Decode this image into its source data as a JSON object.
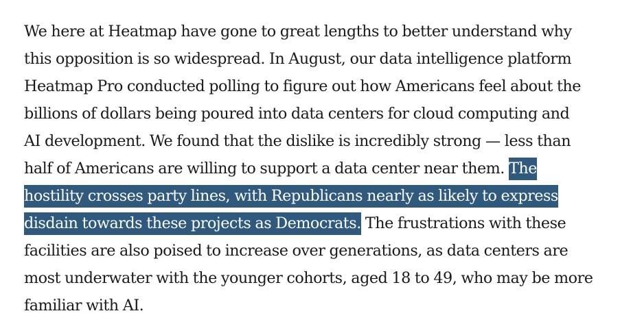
{
  "article": {
    "paragraph": {
      "lines": [
        {
          "text": "We here at Heatmap have gone to great lengths to better understand why"
        },
        {
          "text": "this opposition is so widespread. In August, our data intelligence platform"
        },
        {
          "text": "Heatmap Pro conducted polling to figure out how Americans feel about the"
        },
        {
          "text": "billions of dollars being poured into data centers for cloud computing and"
        },
        {
          "text": "AI development. We found that the dislike is incredibly strong — less than"
        },
        {
          "before": "half of Americans are willing to support a data center near them. ",
          "highlight": "The"
        },
        {
          "highlight": "hostility crosses party lines, with Republicans nearly as likely to express"
        },
        {
          "highlight": "disdain towards these projects as Democrats.",
          "after": " The frustrations with these"
        },
        {
          "text": "facilities are also poised to increase over generations, as data centers are"
        },
        {
          "text": "most underwater with the younger cohorts, aged 18 to 49, who may be more"
        },
        {
          "text": "familiar with AI."
        }
      ]
    },
    "highlight_color": "#2f5a7e"
  }
}
